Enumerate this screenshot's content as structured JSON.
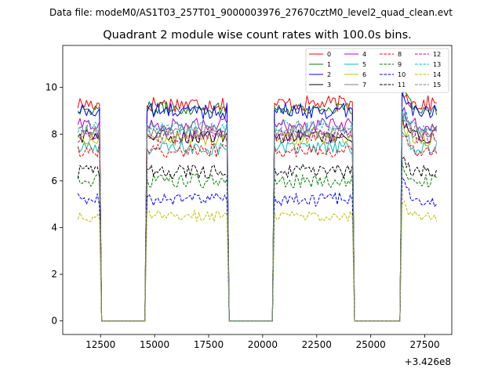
{
  "figure": {
    "suptitle": "Data file: modeM0/AS1T03_257T01_9000003976_27670cztM0_level2_quad_clean.evt"
  },
  "chart_data": {
    "type": "line",
    "title": "Quadrant 2 module wise count rates with 100.0s bins.",
    "xlabel": "",
    "ylabel": "",
    "x_offset_label": "+3.426e8",
    "xlim": [
      10750,
      28750
    ],
    "ylim": [
      -0.58,
      11.8
    ],
    "x_ticks": [
      12500,
      15000,
      17500,
      20000,
      22500,
      25000,
      27500
    ],
    "x_tick_labels": [
      "12500",
      "15000",
      "17500",
      "20000",
      "22500",
      "25000",
      "27500"
    ],
    "y_ticks": [
      0,
      2,
      4,
      6,
      8,
      10
    ],
    "y_tick_labels": [
      "0",
      "2",
      "4",
      "6",
      "8",
      "10"
    ],
    "grid": false,
    "legend_position": "top-right",
    "legend_columns": 4,
    "bin_width_s": 100,
    "x_start": 11450,
    "x_end": 28050,
    "gaps": [
      {
        "zero_from": 12550,
        "zero_to": 14550
      },
      {
        "zero_from": 18450,
        "zero_to": 20450
      },
      {
        "zero_from": 24250,
        "zero_to": 26350
      }
    ],
    "series": [
      {
        "name": "0",
        "color": "#ff0000",
        "linestyle": "solid",
        "mean_rate": 9.3,
        "spread": 0.35
      },
      {
        "name": "1",
        "color": "#008000",
        "linestyle": "solid",
        "mean_rate": 9.1,
        "spread": 0.3
      },
      {
        "name": "2",
        "color": "#0000ff",
        "linestyle": "solid",
        "mean_rate": 9.0,
        "spread": 0.35
      },
      {
        "name": "3",
        "color": "#000000",
        "linestyle": "solid",
        "mean_rate": 7.9,
        "spread": 0.3
      },
      {
        "name": "4",
        "color": "#bf00bf",
        "linestyle": "solid",
        "mean_rate": 8.4,
        "spread": 0.3
      },
      {
        "name": "5",
        "color": "#00bfbf",
        "linestyle": "solid",
        "mean_rate": 7.4,
        "spread": 0.3
      },
      {
        "name": "6",
        "color": "#bfbf00",
        "linestyle": "solid",
        "mean_rate": 7.8,
        "spread": 0.3
      },
      {
        "name": "7",
        "color": "#808080",
        "linestyle": "solid",
        "mean_rate": 8.1,
        "spread": 0.3
      },
      {
        "name": "8",
        "color": "#ff0000",
        "linestyle": "dashed",
        "mean_rate": 7.3,
        "spread": 0.3
      },
      {
        "name": "9",
        "color": "#008000",
        "linestyle": "dashed",
        "mean_rate": 6.0,
        "spread": 0.3
      },
      {
        "name": "10",
        "color": "#0000ff",
        "linestyle": "dashed",
        "mean_rate": 5.2,
        "spread": 0.3
      },
      {
        "name": "11",
        "color": "#000000",
        "linestyle": "dashed",
        "mean_rate": 6.4,
        "spread": 0.3
      },
      {
        "name": "12",
        "color": "#bf00bf",
        "linestyle": "dashed",
        "mean_rate": 7.9,
        "spread": 0.3
      },
      {
        "name": "13",
        "color": "#00bfbf",
        "linestyle": "dashed",
        "mean_rate": 8.3,
        "spread": 0.3
      },
      {
        "name": "14",
        "color": "#bfbf00",
        "linestyle": "dashed",
        "mean_rate": 4.5,
        "spread": 0.25
      },
      {
        "name": "15",
        "color": "#808080",
        "linestyle": "dashed",
        "mean_rate": 8.1,
        "spread": 0.3
      }
    ]
  }
}
